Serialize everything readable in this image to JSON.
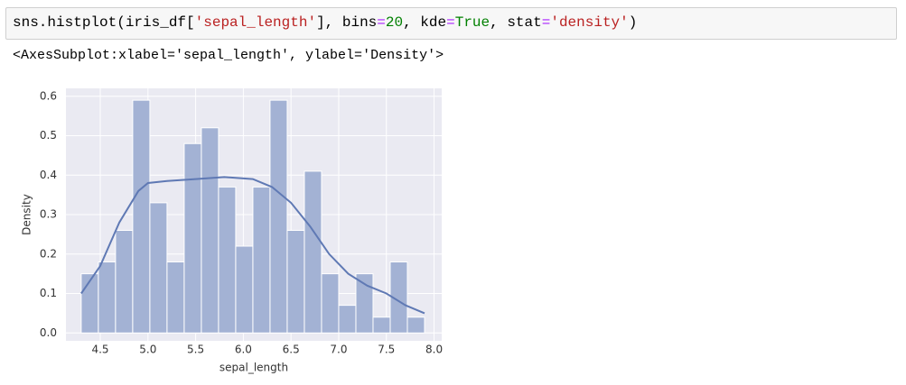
{
  "code": [
    {
      "text": "sns.histplot(iris_df[",
      "color": "#000000"
    },
    {
      "text": "'sepal_length'",
      "color": "#ba2121"
    },
    {
      "text": "], bins",
      "color": "#000000"
    },
    {
      "text": "=",
      "color": "#aa22ff"
    },
    {
      "text": "20",
      "color": "#008000"
    },
    {
      "text": ", kde",
      "color": "#000000"
    },
    {
      "text": "=",
      "color": "#aa22ff"
    },
    {
      "text": "True",
      "color": "#008000"
    },
    {
      "text": ", stat",
      "color": "#000000"
    },
    {
      "text": "=",
      "color": "#aa22ff"
    },
    {
      "text": "'density'",
      "color": "#ba2121"
    },
    {
      "text": ")",
      "color": "#000000"
    }
  ],
  "output": "<AxesSubplot:xlabel='sepal_length', ylabel='Density'>",
  "chart_data": {
    "type": "histogram",
    "x_label": "sepal_length",
    "y_label": "Density",
    "bins": [
      4.3,
      4.48,
      4.66,
      4.84,
      5.02,
      5.2,
      5.38,
      5.56,
      5.74,
      5.92,
      6.1,
      6.28,
      6.46,
      6.64,
      6.82,
      7.0,
      7.18,
      7.36,
      7.54,
      7.72,
      7.9
    ],
    "values": [
      0.15,
      0.18,
      0.26,
      0.59,
      0.33,
      0.18,
      0.48,
      0.52,
      0.37,
      0.22,
      0.37,
      0.59,
      0.26,
      0.41,
      0.15,
      0.07,
      0.15,
      0.04,
      0.18,
      0.04
    ],
    "color": "#a3b2d4",
    "kde": {
      "color": "#5f79b4",
      "x": [
        4.3,
        4.5,
        4.7,
        4.9,
        5.0,
        5.2,
        5.5,
        5.8,
        6.1,
        6.3,
        6.5,
        6.7,
        6.9,
        7.1,
        7.3,
        7.5,
        7.7,
        7.9
      ],
      "y": [
        0.1,
        0.17,
        0.28,
        0.36,
        0.38,
        0.385,
        0.39,
        0.395,
        0.39,
        0.37,
        0.33,
        0.27,
        0.2,
        0.15,
        0.12,
        0.1,
        0.07,
        0.05
      ]
    },
    "xlim": [
      4.14,
      8.08
    ],
    "ylim": [
      -0.02,
      0.62
    ],
    "xticks": [
      4.5,
      {
        "value": 5,
        "label": "5.0"
      },
      5.5,
      {
        "value": 6,
        "label": "6.0"
      },
      6.5,
      {
        "value": 7,
        "label": "7.0"
      },
      7.5,
      {
        "value": 8,
        "label": "8.0"
      }
    ],
    "yticks": [
      {
        "value": 0,
        "label": "0.0"
      },
      0.1,
      0.2,
      0.3,
      0.4,
      0.5,
      0.6
    ],
    "grid": true,
    "background": "#eaeaf2"
  }
}
